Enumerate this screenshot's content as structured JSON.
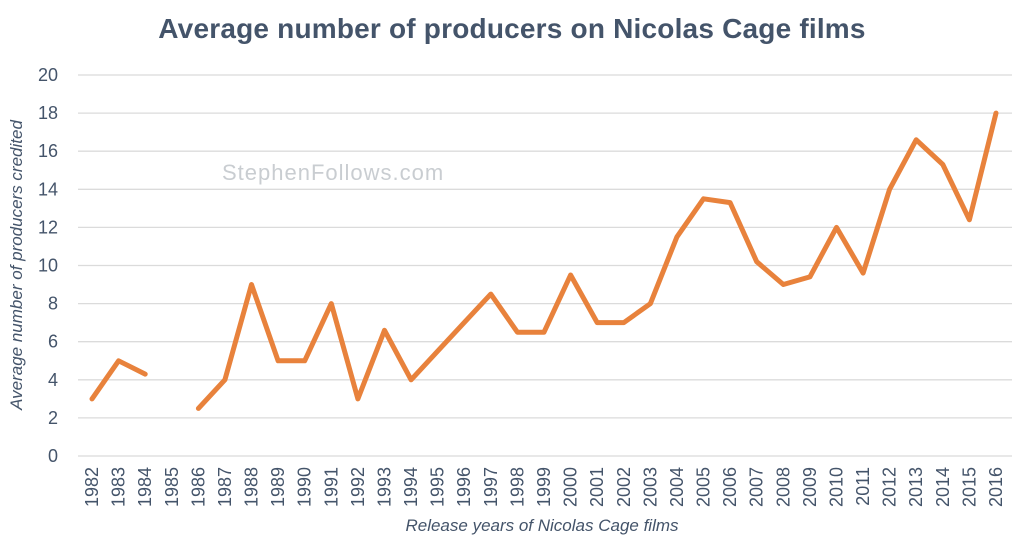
{
  "watermark": "StephenFollows.com",
  "colors": {
    "line": "#E8823C",
    "text": "#44546A",
    "grid": "#DBDBDB",
    "watermark": "#C9CDD1",
    "background": "#FFFFFF"
  },
  "chart_data": {
    "type": "line",
    "title": "Average number of producers on Nicolas Cage films",
    "xlabel": "Release years of Nicolas Cage films",
    "ylabel": "Average number of producers credited",
    "categories": [
      1982,
      1983,
      1984,
      1985,
      1986,
      1987,
      1988,
      1989,
      1990,
      1991,
      1992,
      1993,
      1994,
      1995,
      1996,
      1997,
      1998,
      1999,
      2000,
      2001,
      2002,
      2003,
      2004,
      2005,
      2006,
      2007,
      2008,
      2009,
      2010,
      2011,
      2012,
      2013,
      2014,
      2015,
      2016
    ],
    "series": [
      {
        "name": "Average number of producers credited",
        "values": [
          3,
          5,
          4.3,
          null,
          2.5,
          4,
          9,
          5,
          5,
          8,
          3,
          6.6,
          4,
          5.5,
          7,
          8.5,
          6.5,
          6.5,
          9.5,
          7,
          7,
          8,
          11.5,
          13.5,
          13.3,
          10.2,
          9,
          9.4,
          12,
          9.6,
          14,
          16.6,
          15.3,
          12.4,
          18
        ]
      }
    ],
    "missing_categories": [
      1985
    ],
    "ylim": [
      0,
      20
    ],
    "ytick_step": 2,
    "grid": "horizontal",
    "legend_position": "none"
  }
}
